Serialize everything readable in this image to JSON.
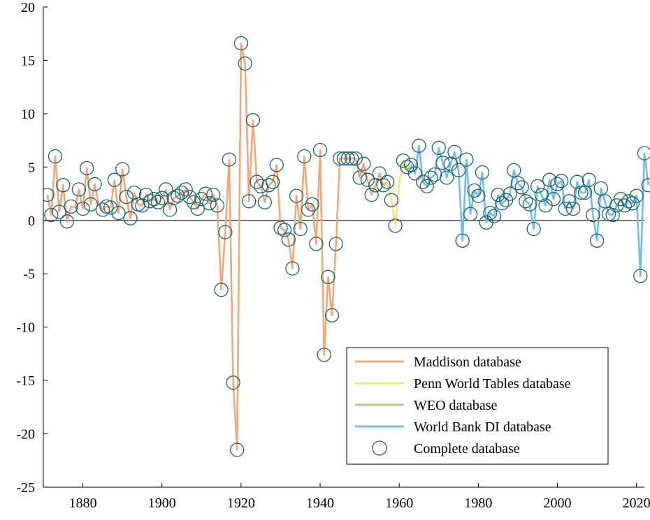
{
  "chart_data": {
    "type": "line",
    "xlim": [
      1870,
      2022
    ],
    "ylim": [
      -25,
      20
    ],
    "x_ticks": [
      1880,
      1900,
      1920,
      1940,
      1960,
      1980,
      2000,
      2020
    ],
    "y_ticks": [
      -25,
      -20,
      -15,
      -10,
      -5,
      0,
      5,
      10,
      15,
      20
    ],
    "y_tick_labels": [
      "-25",
      "-20",
      "-15",
      "-10",
      "-5",
      "0",
      "5",
      "10",
      "15",
      "20"
    ],
    "zero_line": true,
    "grid": false,
    "legend_position": "bottom-right",
    "series": [
      {
        "name": "Maddison database",
        "color": "#f0a878",
        "points": [
          [
            1871,
            2.4
          ],
          [
            1872,
            0.5
          ],
          [
            1873,
            6.0
          ],
          [
            1874,
            0.8
          ],
          [
            1875,
            3.3
          ],
          [
            1876,
            -0.1
          ],
          [
            1877,
            1.3
          ],
          [
            1878,
            1.2
          ],
          [
            1879,
            2.9
          ],
          [
            1880,
            1.1
          ],
          [
            1881,
            4.9
          ],
          [
            1882,
            1.5
          ],
          [
            1883,
            3.4
          ],
          [
            1884,
            1.5
          ],
          [
            1885,
            1.0
          ],
          [
            1886,
            1.3
          ],
          [
            1887,
            1.2
          ],
          [
            1888,
            3.8
          ],
          [
            1889,
            0.7
          ],
          [
            1890,
            4.8
          ],
          [
            1891,
            2.2
          ],
          [
            1892,
            0.2
          ],
          [
            1893,
            2.6
          ],
          [
            1894,
            1.5
          ],
          [
            1895,
            1.4
          ],
          [
            1896,
            2.4
          ],
          [
            1897,
            1.8
          ],
          [
            1898,
            2.0
          ],
          [
            1899,
            1.7
          ],
          [
            1900,
            2.1
          ],
          [
            1901,
            2.9
          ],
          [
            1902,
            1.0
          ],
          [
            1903,
            2.1
          ],
          [
            1904,
            2.3
          ],
          [
            1905,
            2.6
          ],
          [
            1906,
            2.9
          ],
          [
            1907,
            2.2
          ],
          [
            1908,
            1.7
          ],
          [
            1909,
            1.1
          ],
          [
            1910,
            2.0
          ],
          [
            1911,
            2.5
          ],
          [
            1912,
            1.6
          ],
          [
            1913,
            2.4
          ],
          [
            1914,
            1.4
          ],
          [
            1915,
            -6.5
          ],
          [
            1916,
            -1.1
          ],
          [
            1917,
            5.7
          ],
          [
            1918,
            -15.2
          ],
          [
            1919,
            -21.5
          ],
          [
            1920,
            16.6
          ],
          [
            1921,
            14.7
          ],
          [
            1922,
            1.8
          ],
          [
            1923,
            9.4
          ],
          [
            1924,
            3.6
          ],
          [
            1925,
            3.2
          ],
          [
            1926,
            1.7
          ],
          [
            1927,
            3.3
          ],
          [
            1928,
            3.6
          ],
          [
            1929,
            5.2
          ],
          [
            1930,
            -0.7
          ],
          [
            1931,
            -0.9
          ],
          [
            1932,
            -1.8
          ],
          [
            1933,
            -4.5
          ],
          [
            1934,
            2.3
          ],
          [
            1935,
            -0.8
          ],
          [
            1936,
            6.0
          ],
          [
            1937,
            1.0
          ],
          [
            1938,
            1.5
          ],
          [
            1939,
            -2.2
          ],
          [
            1940,
            6.6
          ],
          [
            1941,
            -12.6
          ],
          [
            1942,
            -5.3
          ],
          [
            1943,
            -8.9
          ],
          [
            1944,
            -2.2
          ],
          [
            1945,
            5.8
          ],
          [
            1946,
            5.8
          ],
          [
            1947,
            5.8
          ],
          [
            1948,
            5.8
          ],
          [
            1949,
            5.8
          ],
          [
            1950,
            4.0
          ],
          [
            1951,
            5.3
          ],
          [
            1952,
            3.8
          ],
          [
            1953,
            2.4
          ],
          [
            1954,
            3.3
          ],
          [
            1955,
            4.4
          ],
          [
            1956,
            3.3
          ],
          [
            1957,
            3.6
          ]
        ]
      },
      {
        "name": "Penn World Tables database",
        "color": "#f5e27a",
        "points": [
          [
            1957,
            3.6
          ],
          [
            1958,
            1.9
          ],
          [
            1959,
            -0.5
          ],
          [
            1960,
            3.5
          ],
          [
            1961,
            5.6
          ],
          [
            1962,
            5.0
          ],
          [
            1963,
            5.2
          ]
        ]
      },
      {
        "name": "WEO database",
        "color": "#9fd07f",
        "points": [
          [
            1961,
            5.3
          ],
          [
            1962,
            4.8
          ],
          [
            1963,
            5.0
          ]
        ]
      },
      {
        "name": "World Bank DI database",
        "color": "#74bde8",
        "points": [
          [
            1963,
            5.2
          ],
          [
            1964,
            4.4
          ],
          [
            1965,
            7.0
          ],
          [
            1966,
            3.6
          ],
          [
            1967,
            3.2
          ],
          [
            1968,
            4.0
          ],
          [
            1969,
            4.3
          ],
          [
            1970,
            6.8
          ],
          [
            1971,
            5.4
          ],
          [
            1972,
            4.0
          ],
          [
            1973,
            5.3
          ],
          [
            1974,
            6.4
          ],
          [
            1975,
            4.7
          ],
          [
            1976,
            -1.9
          ],
          [
            1977,
            5.7
          ],
          [
            1978,
            0.6
          ],
          [
            1979,
            2.8
          ],
          [
            1980,
            2.3
          ],
          [
            1981,
            4.5
          ],
          [
            1982,
            -0.2
          ],
          [
            1983,
            0.7
          ],
          [
            1984,
            0.4
          ],
          [
            1985,
            2.4
          ],
          [
            1986,
            1.6
          ],
          [
            1987,
            1.9
          ],
          [
            1988,
            2.5
          ],
          [
            1989,
            4.7
          ],
          [
            1990,
            3.5
          ],
          [
            1991,
            3.1
          ],
          [
            1992,
            1.8
          ],
          [
            1993,
            1.5
          ],
          [
            1994,
            -0.8
          ],
          [
            1995,
            3.2
          ],
          [
            1996,
            2.4
          ],
          [
            1997,
            1.4
          ],
          [
            1998,
            3.8
          ],
          [
            1999,
            2.0
          ],
          [
            2000,
            3.4
          ],
          [
            2001,
            3.7
          ],
          [
            2002,
            1.1
          ],
          [
            2003,
            1.8
          ],
          [
            2004,
            1.1
          ],
          [
            2005,
            3.6
          ],
          [
            2006,
            2.6
          ],
          [
            2007,
            2.6
          ],
          [
            2008,
            3.8
          ],
          [
            2009,
            0.5
          ],
          [
            2010,
            -1.9
          ],
          [
            2011,
            3.0
          ],
          [
            2012,
            1.8
          ],
          [
            2013,
            0.6
          ],
          [
            2014,
            0.5
          ],
          [
            2015,
            1.4
          ],
          [
            2016,
            2.0
          ],
          [
            2017,
            1.4
          ],
          [
            2018,
            1.8
          ],
          [
            2019,
            1.6
          ],
          [
            2020,
            2.3
          ],
          [
            2021,
            -5.2
          ],
          [
            2022,
            6.3
          ],
          [
            2023,
            3.3
          ]
        ]
      },
      {
        "name": "Complete database",
        "color": "#1a6670",
        "marker": "open-circle",
        "points": [
          [
            1871,
            2.4
          ],
          [
            1872,
            0.5
          ],
          [
            1873,
            6.0
          ],
          [
            1874,
            0.8
          ],
          [
            1875,
            3.3
          ],
          [
            1876,
            -0.1
          ],
          [
            1877,
            1.3
          ],
          [
            1879,
            2.9
          ],
          [
            1880,
            1.1
          ],
          [
            1881,
            4.9
          ],
          [
            1882,
            1.5
          ],
          [
            1883,
            3.4
          ],
          [
            1885,
            1.0
          ],
          [
            1886,
            1.3
          ],
          [
            1887,
            1.2
          ],
          [
            1888,
            3.8
          ],
          [
            1889,
            0.7
          ],
          [
            1890,
            4.8
          ],
          [
            1891,
            2.2
          ],
          [
            1892,
            0.2
          ],
          [
            1893,
            2.6
          ],
          [
            1894,
            1.5
          ],
          [
            1895,
            1.4
          ],
          [
            1896,
            2.4
          ],
          [
            1897,
            1.8
          ],
          [
            1898,
            2.0
          ],
          [
            1899,
            1.7
          ],
          [
            1900,
            2.1
          ],
          [
            1901,
            2.9
          ],
          [
            1902,
            1.0
          ],
          [
            1903,
            2.1
          ],
          [
            1904,
            2.3
          ],
          [
            1905,
            2.6
          ],
          [
            1906,
            2.9
          ],
          [
            1907,
            2.2
          ],
          [
            1908,
            1.7
          ],
          [
            1909,
            1.1
          ],
          [
            1910,
            2.0
          ],
          [
            1911,
            2.5
          ],
          [
            1912,
            1.6
          ],
          [
            1913,
            2.4
          ],
          [
            1914,
            1.4
          ],
          [
            1915,
            -6.5
          ],
          [
            1916,
            -1.1
          ],
          [
            1917,
            5.7
          ],
          [
            1918,
            -15.2
          ],
          [
            1919,
            -21.5
          ],
          [
            1920,
            16.6
          ],
          [
            1921,
            14.7
          ],
          [
            1922,
            1.8
          ],
          [
            1923,
            9.4
          ],
          [
            1924,
            3.6
          ],
          [
            1925,
            3.2
          ],
          [
            1926,
            1.7
          ],
          [
            1927,
            3.3
          ],
          [
            1928,
            3.6
          ],
          [
            1929,
            5.2
          ],
          [
            1930,
            -0.7
          ],
          [
            1931,
            -0.9
          ],
          [
            1932,
            -1.8
          ],
          [
            1933,
            -4.5
          ],
          [
            1934,
            2.3
          ],
          [
            1935,
            -0.8
          ],
          [
            1936,
            6.0
          ],
          [
            1937,
            1.0
          ],
          [
            1938,
            1.5
          ],
          [
            1939,
            -2.2
          ],
          [
            1940,
            6.6
          ],
          [
            1941,
            -12.6
          ],
          [
            1942,
            -5.3
          ],
          [
            1943,
            -8.9
          ],
          [
            1944,
            -2.2
          ],
          [
            1945,
            5.8
          ],
          [
            1946,
            5.8
          ],
          [
            1947,
            5.8
          ],
          [
            1948,
            5.8
          ],
          [
            1949,
            5.8
          ],
          [
            1950,
            4.0
          ],
          [
            1951,
            5.3
          ],
          [
            1952,
            3.8
          ],
          [
            1953,
            2.4
          ],
          [
            1954,
            3.3
          ],
          [
            1955,
            4.4
          ],
          [
            1956,
            3.3
          ],
          [
            1957,
            3.6
          ],
          [
            1958,
            1.9
          ],
          [
            1959,
            -0.5
          ],
          [
            1961,
            5.6
          ],
          [
            1962,
            5.0
          ],
          [
            1963,
            5.2
          ],
          [
            1964,
            4.4
          ],
          [
            1965,
            7.0
          ],
          [
            1966,
            3.6
          ],
          [
            1967,
            3.2
          ],
          [
            1968,
            4.0
          ],
          [
            1969,
            4.3
          ],
          [
            1970,
            6.8
          ],
          [
            1971,
            5.4
          ],
          [
            1972,
            4.0
          ],
          [
            1973,
            5.3
          ],
          [
            1974,
            6.4
          ],
          [
            1975,
            4.7
          ],
          [
            1976,
            -1.9
          ],
          [
            1977,
            5.7
          ],
          [
            1978,
            0.6
          ],
          [
            1979,
            2.8
          ],
          [
            1980,
            2.3
          ],
          [
            1981,
            4.5
          ],
          [
            1982,
            -0.2
          ],
          [
            1983,
            0.7
          ],
          [
            1984,
            0.4
          ],
          [
            1985,
            2.4
          ],
          [
            1986,
            1.6
          ],
          [
            1987,
            1.9
          ],
          [
            1988,
            2.5
          ],
          [
            1989,
            4.7
          ],
          [
            1990,
            3.5
          ],
          [
            1991,
            3.1
          ],
          [
            1992,
            1.8
          ],
          [
            1993,
            1.5
          ],
          [
            1994,
            -0.8
          ],
          [
            1995,
            3.2
          ],
          [
            1996,
            2.4
          ],
          [
            1997,
            1.4
          ],
          [
            1998,
            3.8
          ],
          [
            1999,
            2.0
          ],
          [
            2000,
            3.4
          ],
          [
            2001,
            3.7
          ],
          [
            2002,
            1.1
          ],
          [
            2003,
            1.8
          ],
          [
            2004,
            1.1
          ],
          [
            2005,
            3.6
          ],
          [
            2006,
            2.6
          ],
          [
            2007,
            2.6
          ],
          [
            2008,
            3.8
          ],
          [
            2009,
            0.5
          ],
          [
            2010,
            -1.9
          ],
          [
            2011,
            3.0
          ],
          [
            2012,
            1.8
          ],
          [
            2013,
            0.6
          ],
          [
            2014,
            0.5
          ],
          [
            2015,
            1.4
          ],
          [
            2016,
            2.0
          ],
          [
            2017,
            1.4
          ],
          [
            2018,
            1.8
          ],
          [
            2019,
            1.6
          ],
          [
            2020,
            2.3
          ],
          [
            2021,
            -5.2
          ],
          [
            2022,
            6.3
          ],
          [
            2023,
            3.3
          ]
        ]
      }
    ]
  }
}
